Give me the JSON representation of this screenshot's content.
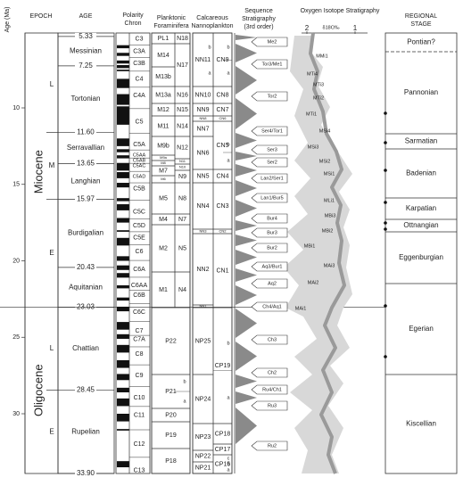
{
  "axis": {
    "label": "Age (Ma)",
    "ticks": [
      10,
      15,
      20,
      25,
      30
    ]
  },
  "headers": {
    "epoch": "EPOCH",
    "age": "AGE",
    "polarity": [
      "Polarity",
      "Chron"
    ],
    "foraminifera": [
      "Planktonic",
      "Foraminifera"
    ],
    "nannoplankton": [
      "Calcareous",
      "Nannoplankton"
    ],
    "sequence": [
      "Sequence",
      "Stratigraphy",
      "(3rd order)"
    ],
    "isotope": "Oxygen Isotope Stratigraphy",
    "regional": [
      "REGIONAL",
      "STAGE"
    ]
  },
  "epochs": [
    {
      "name": "Miocene",
      "subepochs": [
        "L",
        "M",
        "E"
      ]
    },
    {
      "name": "Oligocene",
      "subepochs": [
        "L",
        "E"
      ]
    }
  ],
  "stages": [
    "Messinian",
    "Tortonian",
    "Serravallian",
    "Langhian",
    "Burdigalian",
    "Aquitanian",
    "Chattian",
    "Rupelian"
  ],
  "boundaries": [
    5.33,
    7.25,
    {
      "value": 11.6,
      "label": "11.60"
    },
    13.65,
    15.97,
    20.43,
    23.03,
    28.45,
    {
      "value": 33.9,
      "label": "33.90"
    }
  ],
  "chrons": [
    "C3",
    "C3A",
    "C3B",
    "C4",
    "C4A",
    "C5",
    "C5A",
    "C5AA",
    "C5AB",
    "C5AC",
    "C5AD",
    "C5B",
    "C5C",
    "C5D",
    "C5E",
    "C6",
    "C6A",
    "C6AA",
    "C6B",
    "C6C",
    "C7",
    "C7A",
    "C8",
    "C9",
    "C10",
    "C11",
    "C12",
    "C13"
  ],
  "foraminifera": {
    "m_zones": [
      "PL1",
      "M14",
      "M13b",
      "M13a",
      "M12",
      "M11",
      "M9b",
      "M9a",
      "M8",
      "M7",
      "M6",
      "M5",
      "M4",
      "M2",
      "M1"
    ],
    "n_zones": [
      "N18",
      "N17",
      "N16",
      "N15",
      "N14",
      "N12",
      "N11",
      "N10",
      "N9",
      "N8",
      "N7",
      "N5",
      "N4"
    ],
    "p_zones": [
      "P22",
      "P21",
      "P20",
      "P19",
      "P18"
    ],
    "p21_subzones": [
      "b",
      "a"
    ]
  },
  "nannoplankton": {
    "nn_zones": [
      "NN11",
      "NN10",
      "NN9",
      "NN8",
      "NN7",
      "NN6",
      "NN5",
      "NN4",
      "NN3",
      "NN2",
      "NN1",
      "NP25",
      "NP24",
      "NP23",
      "NP22",
      "NP21"
    ],
    "cn_zones": [
      "CN9",
      "CN8",
      "CN7",
      "CN6",
      "CN5",
      "CN4",
      "CN3",
      "CN2",
      "CN1",
      "CP19",
      "CP18",
      "CP17",
      "CP16"
    ],
    "nn11_subzones": [
      "b",
      "a"
    ],
    "cn9_subzones": [
      "b",
      "a"
    ],
    "cn5_subzones": [
      "b",
      "a"
    ],
    "cp19_subzones": [
      "b",
      "a"
    ],
    "cp16_subzones": [
      "c",
      "b",
      "a"
    ]
  },
  "sequences": [
    "Me2",
    "Tor3/Me1",
    "Tor2",
    "Ser4/Tor1",
    "Ser3",
    "Ser2",
    "Lan2/Ser1",
    "Lan1/Bur5",
    "Bur4",
    "Bur3",
    "Bur2",
    "Aq3/Bur1",
    "Aq2",
    "Ch4/Aq1",
    "Ch3",
    "Ch2",
    "Ru4/Ch1",
    "Ru3",
    "Ru2"
  ],
  "isotope": {
    "unit": "δ18O‰",
    "ticks": [
      2,
      1
    ],
    "events": [
      "MMi1",
      "MTi4",
      "MTi3",
      "MTi2",
      "MTi1",
      "MSi4",
      "MSi3",
      "MSi2",
      "MSi1",
      "MLi1",
      "MBi3",
      "MBi2",
      "MBi1",
      "MAi3",
      "MAi2",
      "MAi1"
    ]
  },
  "regional_stages": [
    "Pontian?",
    "Pannonian",
    "Sarmatian",
    "Badenian",
    "Karpatian",
    "Ottnangian",
    "Eggenburgian",
    "Egerian",
    "Kiscellian"
  ]
}
